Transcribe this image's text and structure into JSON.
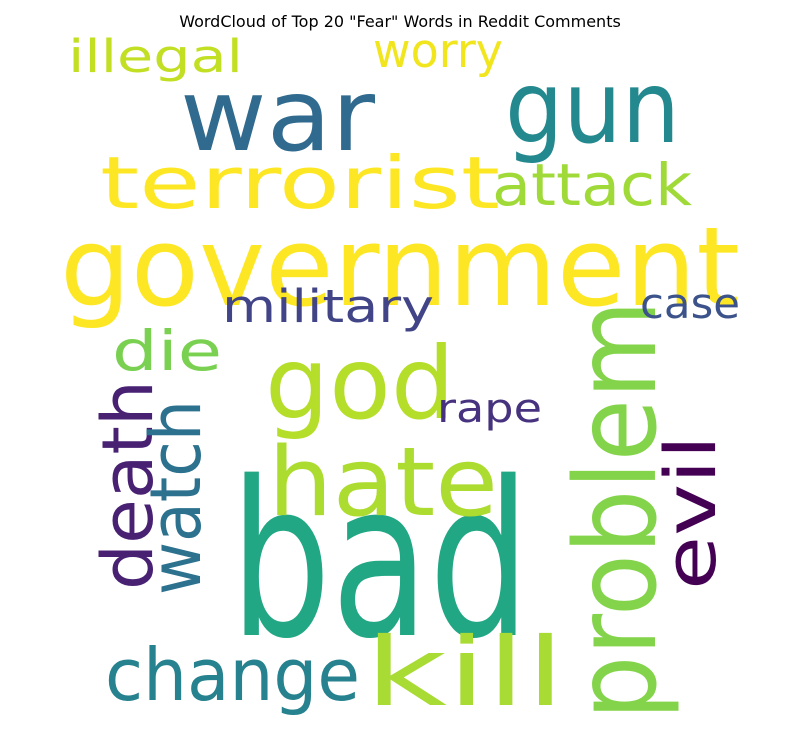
{
  "chart_data": {
    "type": "wordcloud",
    "title": "WordCloud of Top 20 \"Fear\" Words in Reddit Comments",
    "words": [
      {
        "text": "bad",
        "color": "#22a784"
      },
      {
        "text": "government",
        "color": "#fde725"
      },
      {
        "text": "war",
        "color": "#306a8e"
      },
      {
        "text": "gun",
        "color": "#23898e"
      },
      {
        "text": "problem",
        "color": "#84d44b"
      },
      {
        "text": "god",
        "color": "#b5de2b"
      },
      {
        "text": "hate",
        "color": "#addc30"
      },
      {
        "text": "kill",
        "color": "#a8db34"
      },
      {
        "text": "terrorist",
        "color": "#fde725"
      },
      {
        "text": "change",
        "color": "#26828e"
      },
      {
        "text": "death",
        "color": "#482173"
      },
      {
        "text": "watch",
        "color": "#2c718e"
      },
      {
        "text": "evil",
        "color": "#440154"
      },
      {
        "text": "attack",
        "color": "#a0da39"
      },
      {
        "text": "military",
        "color": "#414487"
      },
      {
        "text": "die",
        "color": "#7ad151"
      },
      {
        "text": "worry",
        "color": "#f1e51d"
      },
      {
        "text": "illegal",
        "color": "#c2df23"
      },
      {
        "text": "case",
        "color": "#3b528b"
      },
      {
        "text": "rape",
        "color": "#46327e"
      }
    ]
  }
}
